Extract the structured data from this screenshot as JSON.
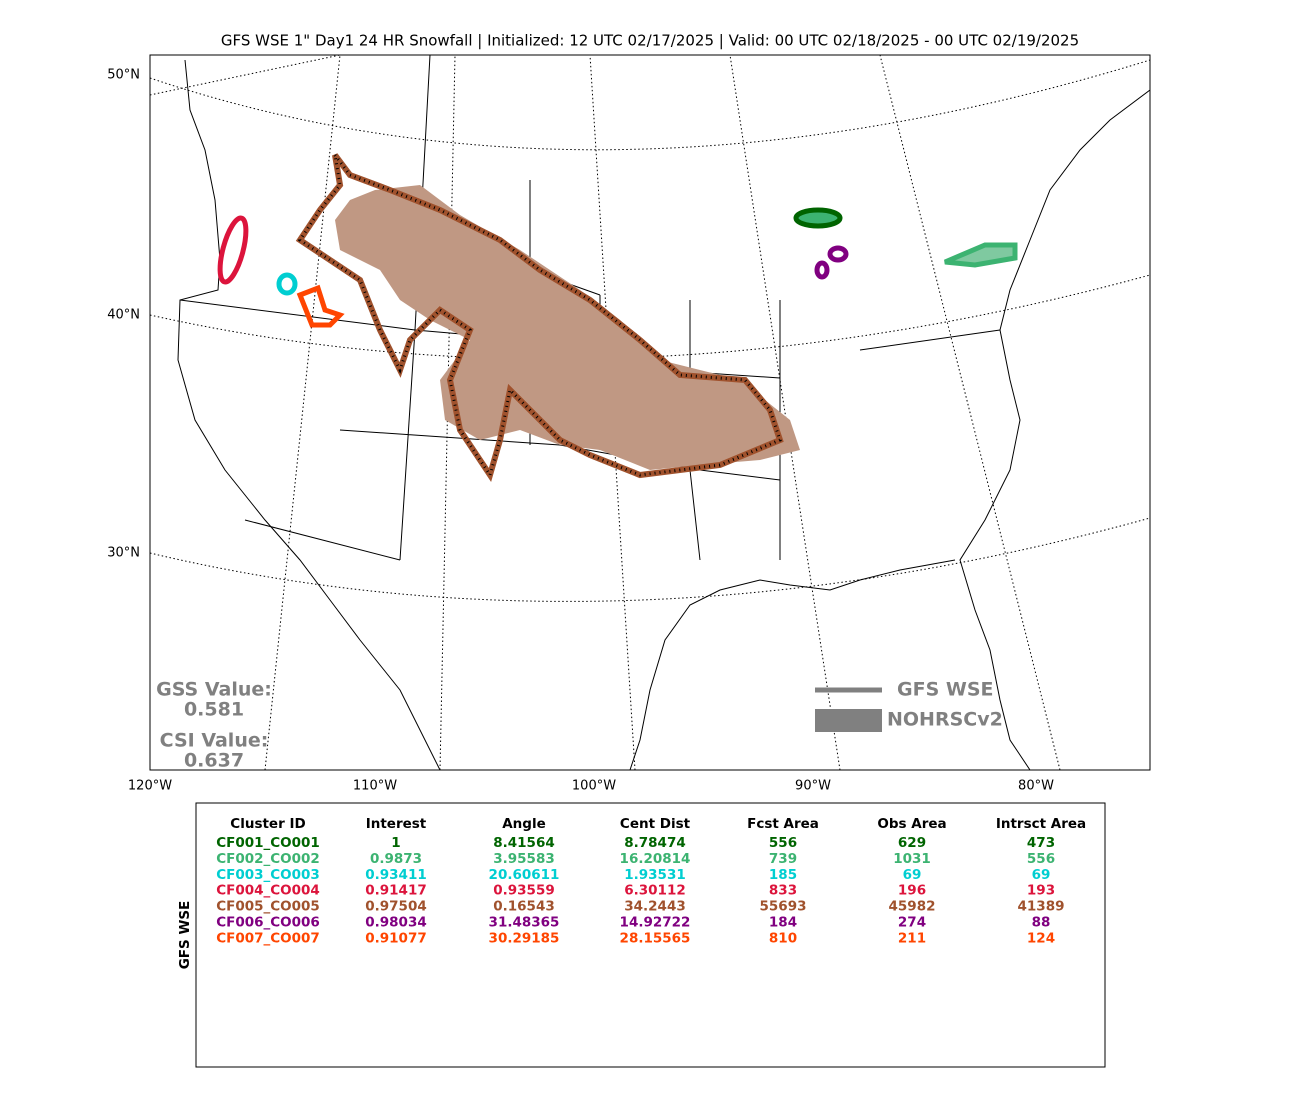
{
  "title": "GFS WSE 1\" Day1 24 HR Snowfall | Initialized: 12 UTC 02/17/2025 | Valid: 00 UTC 02/18/2025 - 00 UTC 02/19/2025",
  "map": {
    "lat_labels": [
      "50°N",
      "40°N",
      "30°N"
    ],
    "lon_labels": [
      "120°W",
      "110°W",
      "100°W",
      "90°W",
      "80°W"
    ],
    "gss_label": "GSS Value:",
    "gss_value": "0.581",
    "csi_label": "CSI Value:",
    "csi_value": "0.637",
    "legend": [
      "GFS WSE",
      "NOHRSCv2"
    ]
  },
  "table": {
    "side_label": "GFS WSE",
    "headers": [
      "Cluster ID",
      "Interest",
      "Angle",
      "Cent Dist",
      "Fcst Area",
      "Obs Area",
      "Intrsct Area"
    ],
    "row_colors": [
      "#006400",
      "#3cb371",
      "#00ced1",
      "#dc143c",
      "#a0522d",
      "#800080",
      "#ff4500"
    ],
    "rows": [
      [
        "CF001_CO001",
        "1",
        "8.41564",
        "8.78474",
        "556",
        "629",
        "473"
      ],
      [
        "CF002_CO002",
        "0.9873",
        "3.95583",
        "16.20814",
        "739",
        "1031",
        "556"
      ],
      [
        "CF003_CO003",
        "0.93411",
        "20.60611",
        "1.93531",
        "185",
        "69",
        "69"
      ],
      [
        "CF004_CO004",
        "0.91417",
        "0.93559",
        "6.30112",
        "833",
        "196",
        "193"
      ],
      [
        "CF005_CO005",
        "0.97504",
        "0.16543",
        "34.2443",
        "55693",
        "45982",
        "41389"
      ],
      [
        "CF006_CO006",
        "0.98034",
        "31.48365",
        "14.92722",
        "184",
        "274",
        "88"
      ],
      [
        "CF007_CO007",
        "0.91077",
        "30.29185",
        "28.15565",
        "810",
        "211",
        "124"
      ]
    ]
  }
}
